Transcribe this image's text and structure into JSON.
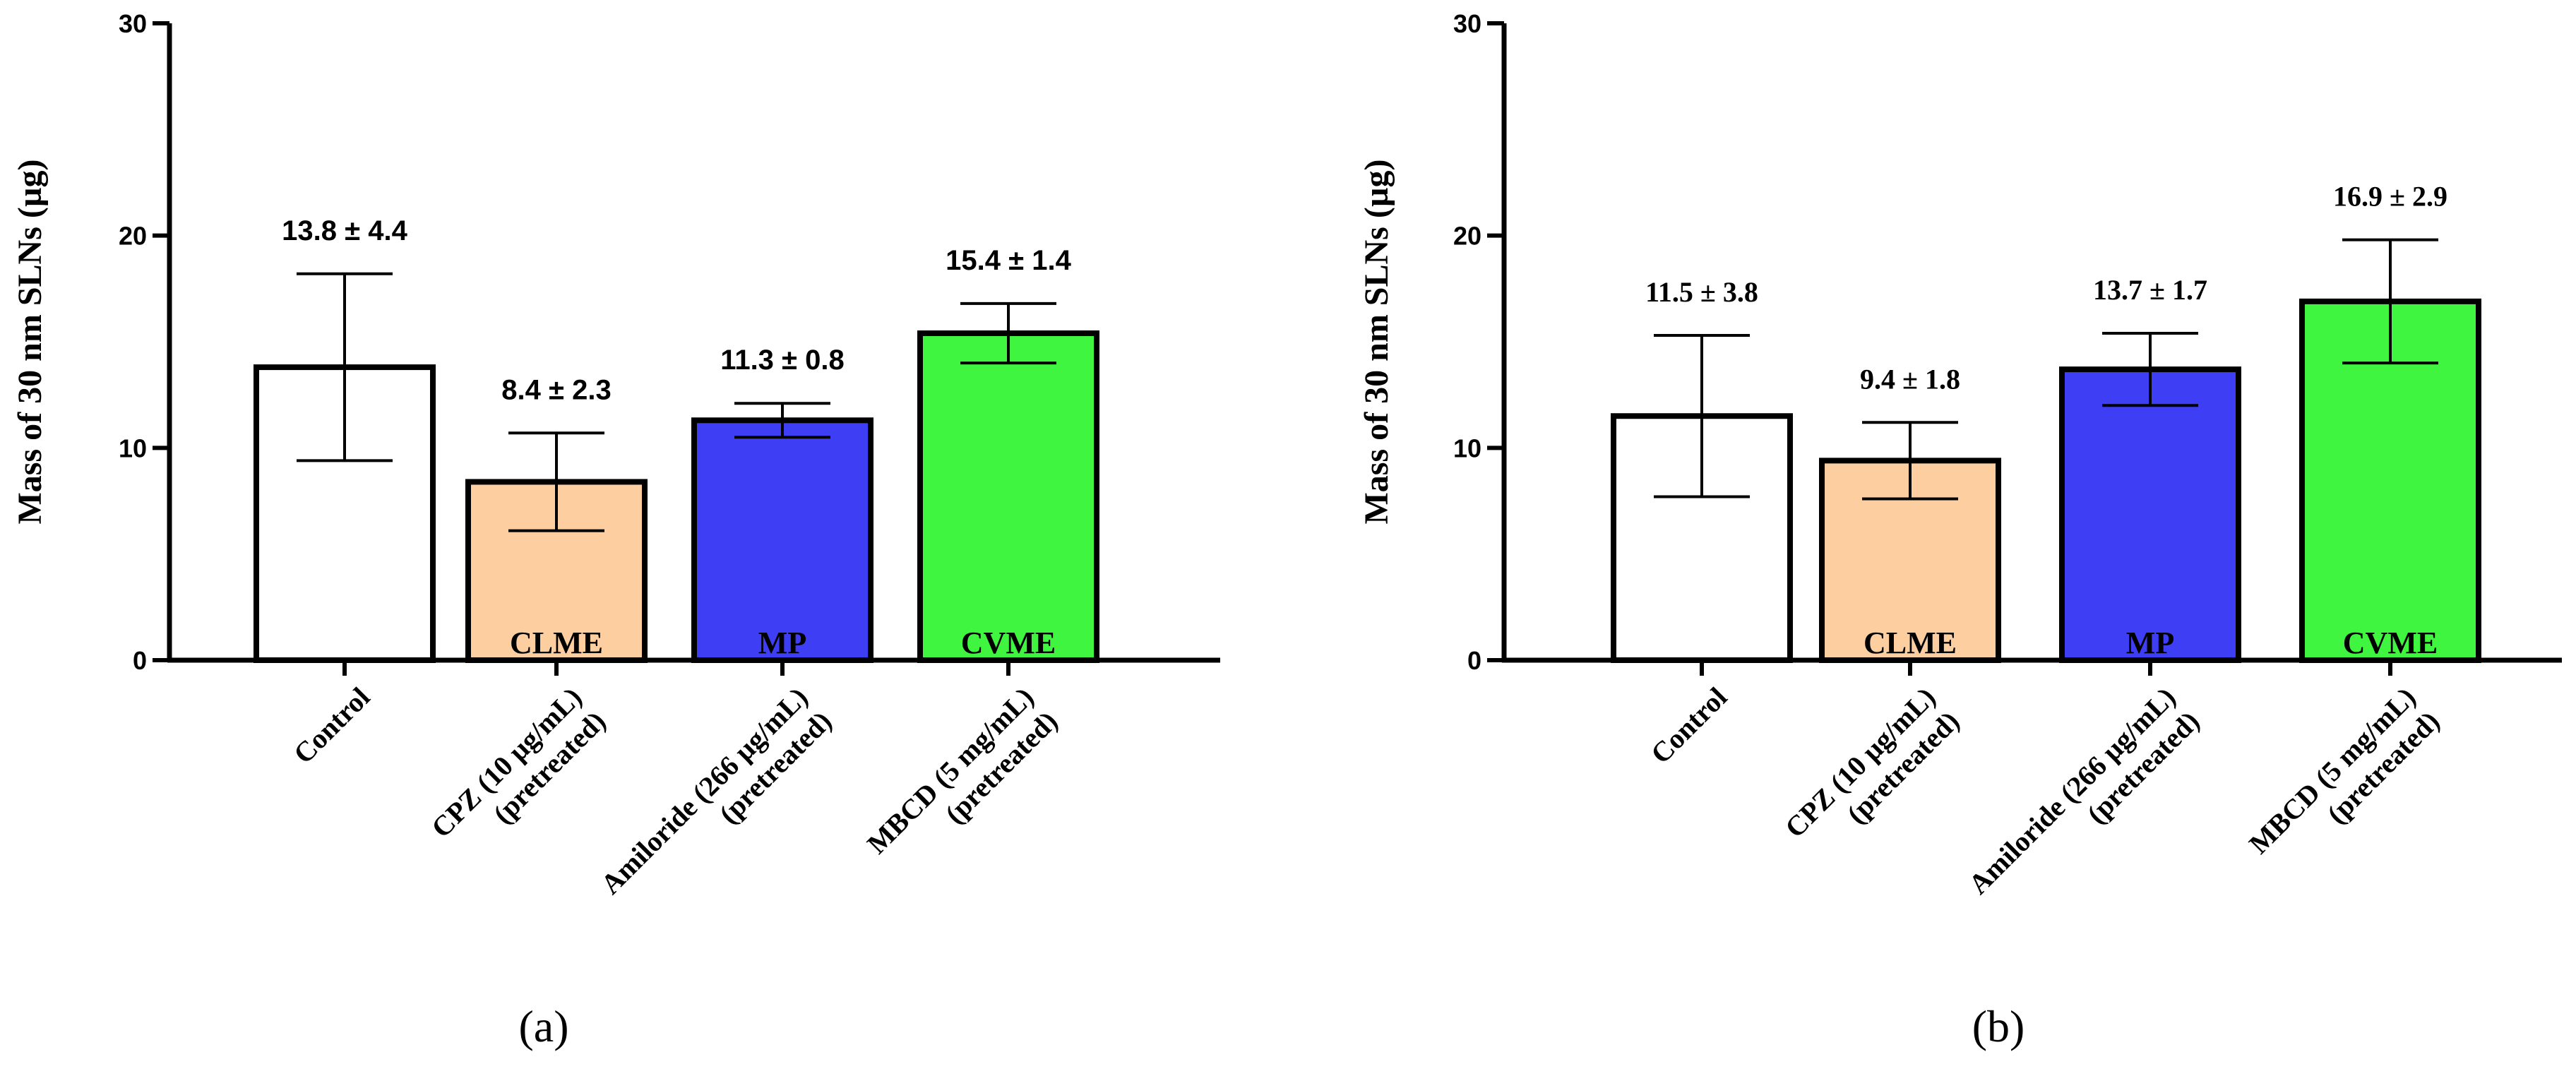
{
  "colors": {
    "axis": "#000000",
    "control": "#ffffff",
    "clme": "#fdcfa0",
    "mp": "#3e3ef5",
    "cvme": "#3ff53f"
  },
  "chart_data": [
    {
      "type": "bar",
      "panel_label": "(a)",
      "ylabel": "Mass of 30 nm SLNs (µg)",
      "ylim": [
        0,
        30
      ],
      "yticks": [
        "0",
        "10",
        "20",
        "30"
      ],
      "categories": [
        [
          "Control"
        ],
        [
          "CPZ (10 µg/mL)",
          "(pretreated)"
        ],
        [
          "Amiloride (266 µg/mL)",
          "(pretreated)"
        ],
        [
          "MBCD (5 mg/mL)",
          "(pretreated)"
        ]
      ],
      "values": [
        13.8,
        8.4,
        11.3,
        15.4
      ],
      "errors": [
        4.4,
        2.3,
        0.8,
        1.4
      ],
      "data_labels": [
        "13.8 ± 4.4",
        "8.4 ± 2.3",
        "11.3 ± 0.8",
        "15.4 ± 1.4"
      ],
      "bar_labels": [
        "",
        "CLME",
        "MP",
        "CVME"
      ],
      "bar_colors": [
        "#ffffff",
        "#fdcfa0",
        "#3e3ef5",
        "#3ff53f"
      ]
    },
    {
      "type": "bar",
      "panel_label": "(b)",
      "ylabel": "Mass of 30 nm SLNs (µg)",
      "ylim": [
        0,
        30
      ],
      "yticks": [
        "0",
        "10",
        "20",
        "30"
      ],
      "categories": [
        [
          "Control"
        ],
        [
          "CPZ (10 µg/mL)",
          "(pretreated)"
        ],
        [
          "Amiloride (266 µg/mL)",
          "(pretreated)"
        ],
        [
          "MBCD (5 mg/mL)",
          "(pretreated)"
        ]
      ],
      "values": [
        11.5,
        9.4,
        13.7,
        16.9
      ],
      "errors": [
        3.8,
        1.8,
        1.7,
        2.9
      ],
      "data_labels": [
        "11.5 ± 3.8",
        "9.4 ± 1.8",
        "13.7 ± 1.7",
        "16.9 ± 2.9"
      ],
      "bar_labels": [
        "",
        "CLME",
        "MP",
        "CVME"
      ],
      "bar_colors": [
        "#ffffff",
        "#fdcfa0",
        "#3e3ef5",
        "#3ff53f"
      ]
    }
  ]
}
